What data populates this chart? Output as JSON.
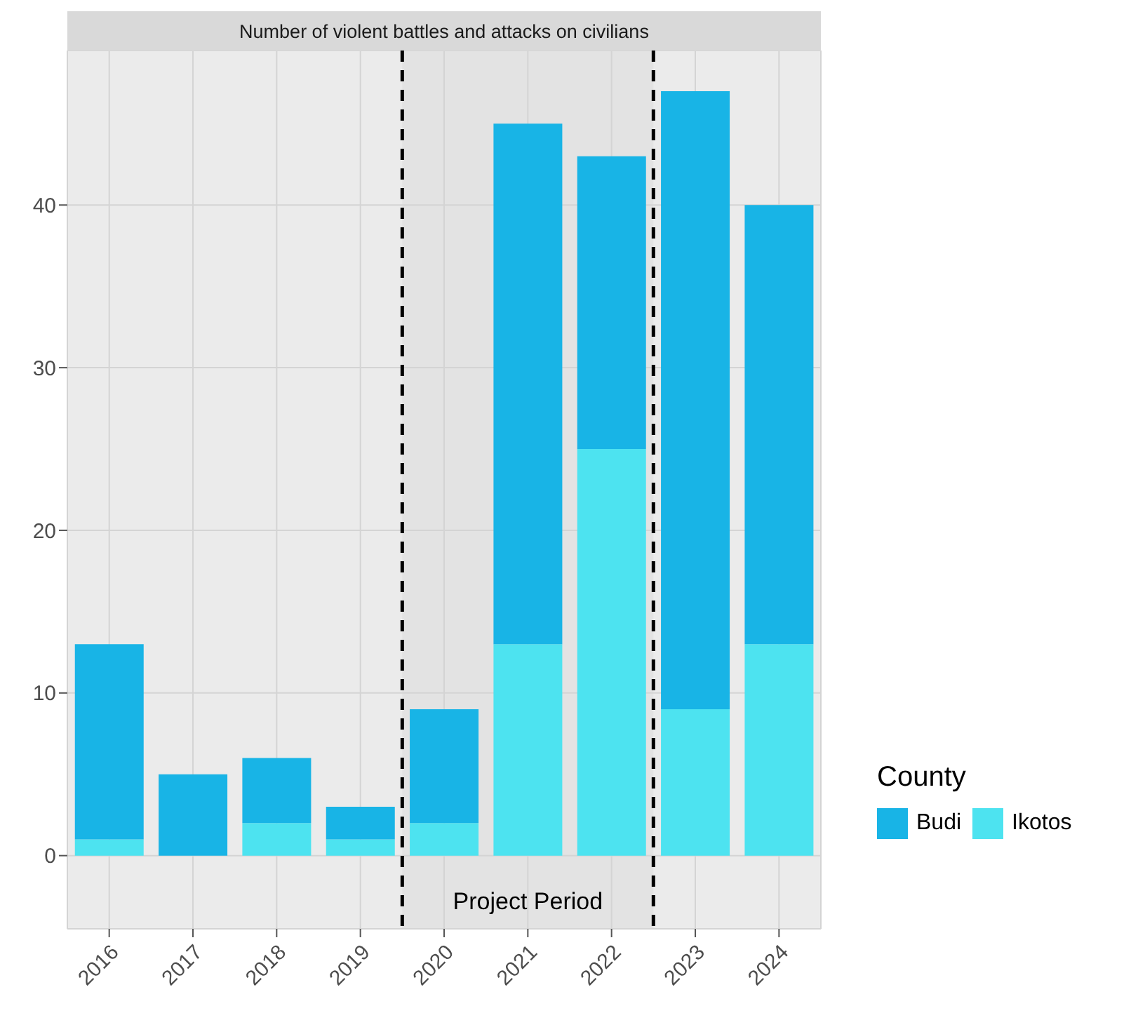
{
  "chart_data": {
    "type": "bar",
    "title": "Number of violent battles and attacks on civilians",
    "categories": [
      "2016",
      "2017",
      "2018",
      "2019",
      "2020",
      "2021",
      "2022",
      "2023",
      "2024"
    ],
    "series": [
      {
        "name": "Ikotos",
        "color": "#4de3f0",
        "values": [
          1,
          0,
          2,
          1,
          2,
          13,
          25,
          9,
          13
        ]
      },
      {
        "name": "Budi",
        "color": "#18b4e6",
        "values": [
          12,
          5,
          4,
          2,
          7,
          32,
          18,
          38,
          27
        ]
      }
    ],
    "stacked": true,
    "legend_title": "County",
    "legend": "right",
    "grid": true,
    "ylim": [
      -4.5,
      49.5
    ],
    "yticks": [
      0,
      10,
      20,
      30,
      40
    ],
    "bands": [
      {
        "axis": "x",
        "from": "2020",
        "to": "2022",
        "label": "Project Period",
        "color": "#e3e3e3"
      }
    ]
  }
}
